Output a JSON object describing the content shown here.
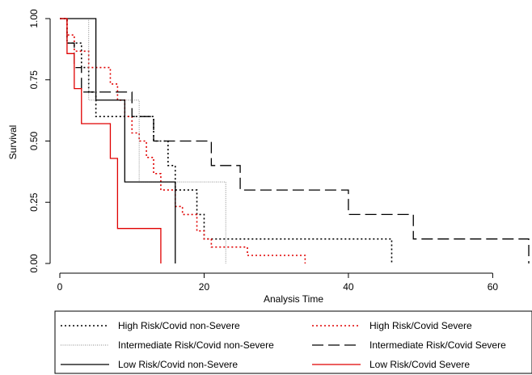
{
  "chart_data": {
    "type": "line",
    "step": true,
    "xlabel": "Analysis Time",
    "ylabel": "Survival",
    "xlim": [
      0,
      65
    ],
    "ylim": [
      0,
      1
    ],
    "xticks": [
      "0",
      "20",
      "40",
      "60"
    ],
    "xtick_values": [
      0,
      20,
      40,
      60
    ],
    "yticks": [
      "0.00",
      "0.25",
      "0.50",
      "0.75",
      "1.00"
    ],
    "ytick_values": [
      0,
      0.25,
      0.5,
      0.75,
      1.0
    ],
    "grid": false,
    "legend_position": "bottom",
    "series": [
      {
        "name": "High Risk/Covid non-Severe",
        "color": "#000000",
        "dash": "dotted",
        "points": [
          [
            0,
            1.0
          ],
          [
            1,
            1.0
          ],
          [
            1,
            0.9
          ],
          [
            3,
            0.9
          ],
          [
            3,
            0.8
          ],
          [
            4,
            0.8
          ],
          [
            4,
            0.7
          ],
          [
            5,
            0.7
          ],
          [
            5,
            0.6
          ],
          [
            13,
            0.6
          ],
          [
            13,
            0.5
          ],
          [
            15,
            0.5
          ],
          [
            15,
            0.4
          ],
          [
            16,
            0.4
          ],
          [
            16,
            0.3
          ],
          [
            19,
            0.3
          ],
          [
            19,
            0.2
          ],
          [
            20,
            0.2
          ],
          [
            20,
            0.1
          ],
          [
            46,
            0.1
          ],
          [
            46,
            0.0
          ]
        ]
      },
      {
        "name": "High Risk/Covid Severe",
        "color": "#e00000",
        "dash": "dotted",
        "points": [
          [
            0,
            1.0
          ],
          [
            1,
            1.0
          ],
          [
            1,
            0.933
          ],
          [
            2,
            0.933
          ],
          [
            2,
            0.867
          ],
          [
            4,
            0.867
          ],
          [
            4,
            0.8
          ],
          [
            7,
            0.8
          ],
          [
            7,
            0.733
          ],
          [
            8,
            0.733
          ],
          [
            8,
            0.667
          ],
          [
            9,
            0.667
          ],
          [
            9,
            0.6
          ],
          [
            10,
            0.6
          ],
          [
            10,
            0.533
          ],
          [
            11,
            0.533
          ],
          [
            11,
            0.5
          ],
          [
            12,
            0.5
          ],
          [
            12,
            0.433
          ],
          [
            13,
            0.433
          ],
          [
            13,
            0.367
          ],
          [
            14,
            0.367
          ],
          [
            14,
            0.3
          ],
          [
            16,
            0.3
          ],
          [
            16,
            0.233
          ],
          [
            17,
            0.233
          ],
          [
            17,
            0.2
          ],
          [
            19,
            0.2
          ],
          [
            19,
            0.133
          ],
          [
            20,
            0.133
          ],
          [
            20,
            0.1
          ],
          [
            21,
            0.1
          ],
          [
            21,
            0.067
          ],
          [
            26,
            0.067
          ],
          [
            26,
            0.033
          ],
          [
            34,
            0.033
          ],
          [
            34,
            0.0
          ]
        ]
      },
      {
        "name": "Intermediate Risk/Covid non-Severe",
        "color": "#888888",
        "dash": "dense",
        "points": [
          [
            0,
            1.0
          ],
          [
            4,
            1.0
          ],
          [
            4,
            0.667
          ],
          [
            11,
            0.667
          ],
          [
            11,
            0.333
          ],
          [
            23,
            0.333
          ],
          [
            23,
            0.0
          ]
        ]
      },
      {
        "name": "Intermediate Risk/Covid Severe",
        "color": "#000000",
        "dash": "long",
        "points": [
          [
            0,
            1.0
          ],
          [
            1,
            1.0
          ],
          [
            1,
            0.9
          ],
          [
            2,
            0.9
          ],
          [
            2,
            0.8
          ],
          [
            3,
            0.8
          ],
          [
            3,
            0.7
          ],
          [
            10,
            0.7
          ],
          [
            10,
            0.6
          ],
          [
            13,
            0.6
          ],
          [
            13,
            0.5
          ],
          [
            21,
            0.5
          ],
          [
            21,
            0.4
          ],
          [
            25,
            0.4
          ],
          [
            25,
            0.3
          ],
          [
            40,
            0.3
          ],
          [
            40,
            0.2
          ],
          [
            49,
            0.2
          ],
          [
            49,
            0.1
          ],
          [
            65,
            0.1
          ],
          [
            65,
            0.0
          ]
        ]
      },
      {
        "name": "Low Risk/Covid non-Severe",
        "color": "#000000",
        "dash": "solid",
        "points": [
          [
            0,
            1.0
          ],
          [
            5,
            1.0
          ],
          [
            5,
            0.667
          ],
          [
            9,
            0.667
          ],
          [
            9,
            0.333
          ],
          [
            16,
            0.333
          ],
          [
            16,
            0.0
          ]
        ]
      },
      {
        "name": "Low Risk/Covid Severe",
        "color": "#e00000",
        "dash": "solid",
        "points": [
          [
            0,
            1.0
          ],
          [
            1,
            1.0
          ],
          [
            1,
            0.857
          ],
          [
            2,
            0.857
          ],
          [
            2,
            0.714
          ],
          [
            3,
            0.714
          ],
          [
            3,
            0.571
          ],
          [
            7,
            0.571
          ],
          [
            7,
            0.429
          ],
          [
            8,
            0.429
          ],
          [
            8,
            0.143
          ],
          [
            14,
            0.143
          ],
          [
            14,
            0.0
          ]
        ]
      }
    ]
  }
}
